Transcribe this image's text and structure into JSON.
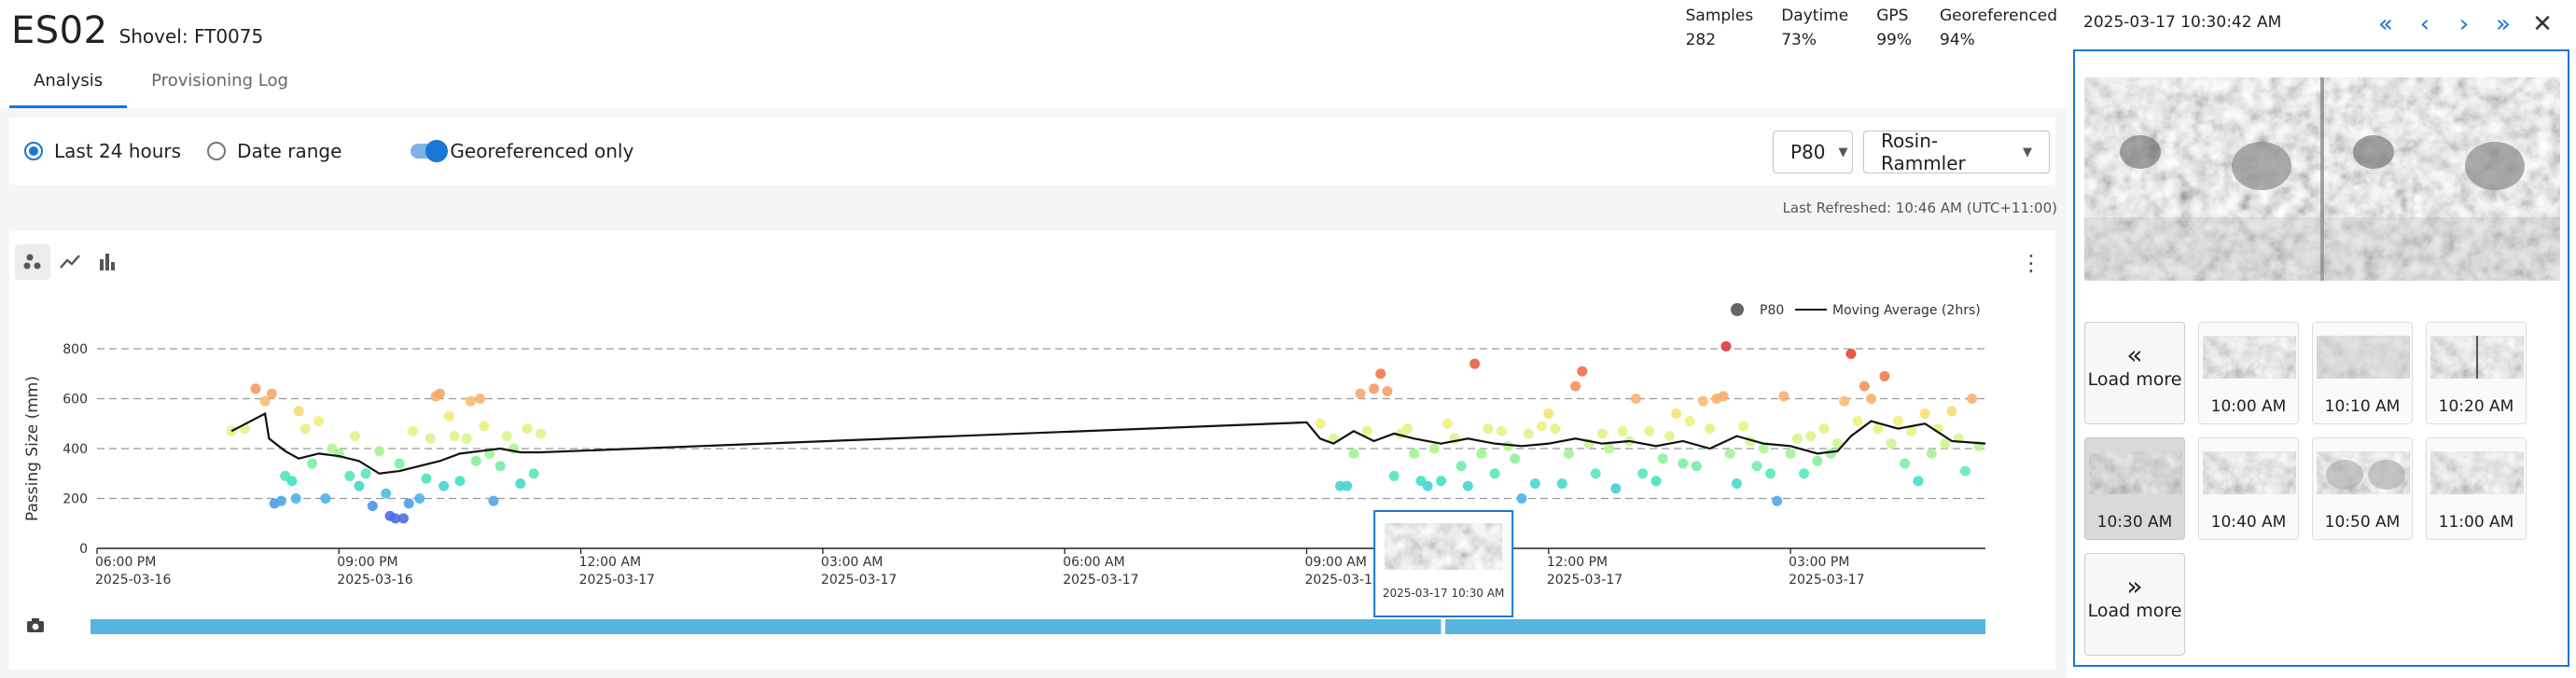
{
  "header": {
    "title": "ES02",
    "subtitle": "Shovel: FT0075",
    "stats": [
      {
        "label": "Samples",
        "value": "282"
      },
      {
        "label": "Daytime",
        "value": "73%"
      },
      {
        "label": "GPS",
        "value": "99%"
      },
      {
        "label": "Georeferenced",
        "value": "94%"
      }
    ],
    "tabs": [
      {
        "label": "Analysis",
        "active": true
      },
      {
        "label": "Provisioning Log",
        "active": false
      }
    ]
  },
  "filters": {
    "range_last24": "Last 24 hours",
    "range_date": "Date range",
    "geo_only": "Georeferenced only",
    "geo_only_on": true,
    "metric_select": "P80",
    "model_select": "Rosin-Rammler"
  },
  "last_refreshed": "Last Refreshed: 10:46 AM (UTC+11:00)",
  "chart_toolbar": {
    "icons": [
      "scatter-icon",
      "line-chart-icon",
      "bar-chart-icon"
    ],
    "menu_icon": "more-vert-icon"
  },
  "chart_data": {
    "type": "scatter",
    "ylabel": "Passing Size (mm)",
    "ylim": [
      0,
      800
    ],
    "yticks": [
      0,
      200,
      400,
      600,
      800
    ],
    "grid": "horizontal dashed",
    "legend": {
      "placement": "top-right",
      "points": "P80",
      "line": "Moving Average (2hrs)"
    },
    "x_start": "2025-03-16T18:00",
    "x_end": "2025-03-17T17:25",
    "x_ticks": [
      {
        "time": "2025-03-16T18:00",
        "label1": "06:00 PM",
        "label2": "2025-03-16"
      },
      {
        "time": "2025-03-16T21:00",
        "label1": "09:00 PM",
        "label2": "2025-03-16"
      },
      {
        "time": "2025-03-17T00:00",
        "label1": "12:00 AM",
        "label2": "2025-03-17"
      },
      {
        "time": "2025-03-17T03:00",
        "label1": "03:00 AM",
        "label2": "2025-03-17"
      },
      {
        "time": "2025-03-17T06:00",
        "label1": "06:00 AM",
        "label2": "2025-03-17"
      },
      {
        "time": "2025-03-17T09:00",
        "label1": "09:00 AM",
        "label2": "2025-03-17"
      },
      {
        "time": "2025-03-17T12:00",
        "label1": "12:00 PM",
        "label2": "2025-03-17"
      },
      {
        "time": "2025-03-17T15:00",
        "label1": "03:00 PM",
        "label2": "2025-03-17"
      }
    ],
    "points": [
      [
        "2025-03-16T19:40",
        470
      ],
      [
        "2025-03-16T19:50",
        480
      ],
      [
        "2025-03-16T19:58",
        640
      ],
      [
        "2025-03-16T20:05",
        590
      ],
      [
        "2025-03-16T20:10",
        620
      ],
      [
        "2025-03-16T20:12",
        180
      ],
      [
        "2025-03-16T20:17",
        190
      ],
      [
        "2025-03-16T20:20",
        290
      ],
      [
        "2025-03-16T20:25",
        270
      ],
      [
        "2025-03-16T20:28",
        200
      ],
      [
        "2025-03-16T20:30",
        550
      ],
      [
        "2025-03-16T20:35",
        480
      ],
      [
        "2025-03-16T20:40",
        340
      ],
      [
        "2025-03-16T20:45",
        510
      ],
      [
        "2025-03-16T20:50",
        200
      ],
      [
        "2025-03-16T20:55",
        400
      ],
      [
        "2025-03-16T21:00",
        380
      ],
      [
        "2025-03-16T21:08",
        290
      ],
      [
        "2025-03-16T21:12",
        450
      ],
      [
        "2025-03-16T21:15",
        250
      ],
      [
        "2025-03-16T21:20",
        300
      ],
      [
        "2025-03-16T21:25",
        170
      ],
      [
        "2025-03-16T21:30",
        390
      ],
      [
        "2025-03-16T21:35",
        220
      ],
      [
        "2025-03-16T21:38",
        130
      ],
      [
        "2025-03-16T21:42",
        120
      ],
      [
        "2025-03-16T21:45",
        340
      ],
      [
        "2025-03-16T21:48",
        120
      ],
      [
        "2025-03-16T21:52",
        180
      ],
      [
        "2025-03-16T21:55",
        470
      ],
      [
        "2025-03-16T22:00",
        200
      ],
      [
        "2025-03-16T22:05",
        280
      ],
      [
        "2025-03-16T22:08",
        440
      ],
      [
        "2025-03-16T22:12",
        610
      ],
      [
        "2025-03-16T22:15",
        620
      ],
      [
        "2025-03-16T22:18",
        250
      ],
      [
        "2025-03-16T22:22",
        530
      ],
      [
        "2025-03-16T22:26",
        450
      ],
      [
        "2025-03-16T22:30",
        270
      ],
      [
        "2025-03-16T22:35",
        440
      ],
      [
        "2025-03-16T22:38",
        590
      ],
      [
        "2025-03-16T22:42",
        350
      ],
      [
        "2025-03-16T22:45",
        600
      ],
      [
        "2025-03-16T22:48",
        490
      ],
      [
        "2025-03-16T22:52",
        380
      ],
      [
        "2025-03-16T22:55",
        190
      ],
      [
        "2025-03-16T23:00",
        330
      ],
      [
        "2025-03-16T23:05",
        450
      ],
      [
        "2025-03-16T23:10",
        400
      ],
      [
        "2025-03-16T23:15",
        260
      ],
      [
        "2025-03-16T23:20",
        480
      ],
      [
        "2025-03-16T23:25",
        300
      ],
      [
        "2025-03-16T23:30",
        460
      ],
      [
        "2025-03-17T09:10",
        500
      ],
      [
        "2025-03-17T09:20",
        440
      ],
      [
        "2025-03-17T09:25",
        250
      ],
      [
        "2025-03-17T09:30",
        250
      ],
      [
        "2025-03-17T09:35",
        380
      ],
      [
        "2025-03-17T09:40",
        620
      ],
      [
        "2025-03-17T09:45",
        470
      ],
      [
        "2025-03-17T09:50",
        640
      ],
      [
        "2025-03-17T09:55",
        700
      ],
      [
        "2025-03-17T10:00",
        630
      ],
      [
        "2025-03-17T10:05",
        290
      ],
      [
        "2025-03-17T10:10",
        460
      ],
      [
        "2025-03-17T10:15",
        480
      ],
      [
        "2025-03-17T10:20",
        380
      ],
      [
        "2025-03-17T10:25",
        270
      ],
      [
        "2025-03-17T10:30",
        250
      ],
      [
        "2025-03-17T10:35",
        400
      ],
      [
        "2025-03-17T10:40",
        270
      ],
      [
        "2025-03-17T10:45",
        500
      ],
      [
        "2025-03-17T10:50",
        440
      ],
      [
        "2025-03-17T10:55",
        330
      ],
      [
        "2025-03-17T11:00",
        250
      ],
      [
        "2025-03-17T11:05",
        740
      ],
      [
        "2025-03-17T11:10",
        380
      ],
      [
        "2025-03-17T11:15",
        480
      ],
      [
        "2025-03-17T11:20",
        300
      ],
      [
        "2025-03-17T11:25",
        470
      ],
      [
        "2025-03-17T11:30",
        410
      ],
      [
        "2025-03-17T11:35",
        360
      ],
      [
        "2025-03-17T11:40",
        200
      ],
      [
        "2025-03-17T11:45",
        460
      ],
      [
        "2025-03-17T11:50",
        260
      ],
      [
        "2025-03-17T11:55",
        490
      ],
      [
        "2025-03-17T12:00",
        540
      ],
      [
        "2025-03-17T12:05",
        480
      ],
      [
        "2025-03-17T12:10",
        260
      ],
      [
        "2025-03-17T12:15",
        380
      ],
      [
        "2025-03-17T12:20",
        650
      ],
      [
        "2025-03-17T12:25",
        710
      ],
      [
        "2025-03-17T12:30",
        420
      ],
      [
        "2025-03-17T12:35",
        300
      ],
      [
        "2025-03-17T12:40",
        460
      ],
      [
        "2025-03-17T12:45",
        400
      ],
      [
        "2025-03-17T12:50",
        240
      ],
      [
        "2025-03-17T12:55",
        470
      ],
      [
        "2025-03-17T13:00",
        430
      ],
      [
        "2025-03-17T13:05",
        600
      ],
      [
        "2025-03-17T13:10",
        300
      ],
      [
        "2025-03-17T13:15",
        470
      ],
      [
        "2025-03-17T13:20",
        270
      ],
      [
        "2025-03-17T13:25",
        360
      ],
      [
        "2025-03-17T13:30",
        450
      ],
      [
        "2025-03-17T13:35",
        540
      ],
      [
        "2025-03-17T13:40",
        340
      ],
      [
        "2025-03-17T13:45",
        510
      ],
      [
        "2025-03-17T13:50",
        330
      ],
      [
        "2025-03-17T13:55",
        590
      ],
      [
        "2025-03-17T14:00",
        480
      ],
      [
        "2025-03-17T14:05",
        600
      ],
      [
        "2025-03-17T14:10",
        610
      ],
      [
        "2025-03-17T14:12",
        810
      ],
      [
        "2025-03-17T14:15",
        380
      ],
      [
        "2025-03-17T14:20",
        260
      ],
      [
        "2025-03-17T14:25",
        490
      ],
      [
        "2025-03-17T14:30",
        430
      ],
      [
        "2025-03-17T14:35",
        330
      ],
      [
        "2025-03-17T14:40",
        400
      ],
      [
        "2025-03-17T14:45",
        300
      ],
      [
        "2025-03-17T14:50",
        190
      ],
      [
        "2025-03-17T14:55",
        610
      ],
      [
        "2025-03-17T15:00",
        380
      ],
      [
        "2025-03-17T15:05",
        440
      ],
      [
        "2025-03-17T15:10",
        300
      ],
      [
        "2025-03-17T15:15",
        450
      ],
      [
        "2025-03-17T15:20",
        350
      ],
      [
        "2025-03-17T15:25",
        480
      ],
      [
        "2025-03-17T15:30",
        380
      ],
      [
        "2025-03-17T15:35",
        420
      ],
      [
        "2025-03-17T15:40",
        590
      ],
      [
        "2025-03-17T15:45",
        780
      ],
      [
        "2025-03-17T15:50",
        510
      ],
      [
        "2025-03-17T15:55",
        650
      ],
      [
        "2025-03-17T16:00",
        600
      ],
      [
        "2025-03-17T16:05",
        480
      ],
      [
        "2025-03-17T16:10",
        690
      ],
      [
        "2025-03-17T16:15",
        420
      ],
      [
        "2025-03-17T16:20",
        510
      ],
      [
        "2025-03-17T16:25",
        340
      ],
      [
        "2025-03-17T16:30",
        470
      ],
      [
        "2025-03-17T16:35",
        270
      ],
      [
        "2025-03-17T16:40",
        540
      ],
      [
        "2025-03-17T16:45",
        380
      ],
      [
        "2025-03-17T16:50",
        480
      ],
      [
        "2025-03-17T16:55",
        420
      ],
      [
        "2025-03-17T17:00",
        550
      ],
      [
        "2025-03-17T17:05",
        440
      ],
      [
        "2025-03-17T17:10",
        310
      ],
      [
        "2025-03-17T17:15",
        600
      ],
      [
        "2025-03-17T17:20",
        410
      ]
    ],
    "moving_average": [
      [
        "2025-03-16T19:40",
        470
      ],
      [
        "2025-03-16T20:05",
        540
      ],
      [
        "2025-03-16T20:08",
        440
      ],
      [
        "2025-03-16T20:20",
        390
      ],
      [
        "2025-03-16T20:30",
        360
      ],
      [
        "2025-03-16T20:45",
        380
      ],
      [
        "2025-03-16T21:00",
        370
      ],
      [
        "2025-03-16T21:15",
        350
      ],
      [
        "2025-03-16T21:30",
        300
      ],
      [
        "2025-03-16T21:45",
        310
      ],
      [
        "2025-03-16T22:00",
        330
      ],
      [
        "2025-03-16T22:15",
        350
      ],
      [
        "2025-03-16T22:30",
        380
      ],
      [
        "2025-03-16T22:45",
        390
      ],
      [
        "2025-03-16T23:00",
        400
      ],
      [
        "2025-03-16T23:15",
        385
      ],
      [
        "2025-03-16T23:30",
        385
      ],
      [
        "2025-03-17T09:00",
        505
      ],
      [
        "2025-03-17T09:10",
        440
      ],
      [
        "2025-03-17T09:20",
        420
      ],
      [
        "2025-03-17T09:35",
        470
      ],
      [
        "2025-03-17T09:50",
        430
      ],
      [
        "2025-03-17T10:05",
        460
      ],
      [
        "2025-03-17T10:20",
        440
      ],
      [
        "2025-03-17T10:40",
        420
      ],
      [
        "2025-03-17T11:00",
        440
      ],
      [
        "2025-03-17T11:20",
        420
      ],
      [
        "2025-03-17T11:40",
        410
      ],
      [
        "2025-03-17T12:00",
        420
      ],
      [
        "2025-03-17T12:20",
        440
      ],
      [
        "2025-03-17T12:40",
        420
      ],
      [
        "2025-03-17T13:00",
        430
      ],
      [
        "2025-03-17T13:20",
        410
      ],
      [
        "2025-03-17T13:40",
        430
      ],
      [
        "2025-03-17T14:00",
        400
      ],
      [
        "2025-03-17T14:20",
        450
      ],
      [
        "2025-03-17T14:40",
        420
      ],
      [
        "2025-03-17T15:00",
        410
      ],
      [
        "2025-03-17T15:20",
        380
      ],
      [
        "2025-03-17T15:35",
        390
      ],
      [
        "2025-03-17T15:45",
        450
      ],
      [
        "2025-03-17T16:00",
        510
      ],
      [
        "2025-03-17T16:20",
        480
      ],
      [
        "2025-03-17T16:40",
        500
      ],
      [
        "2025-03-17T17:00",
        430
      ],
      [
        "2025-03-17T17:25",
        420
      ]
    ],
    "image_coverage": [
      [
        "2025-03-16T18:00",
        "2025-03-17T10:40"
      ],
      [
        "2025-03-17T10:48",
        "2025-03-17T17:25"
      ]
    ],
    "hover_preview": {
      "time": "2025-03-17T10:30",
      "label": "2025-03-17 10:30 AM"
    }
  },
  "panel": {
    "timestamp": "2025-03-17 10:30:42 AM",
    "nav_icons": [
      "first-page-icon",
      "prev-icon",
      "next-icon",
      "last-page-icon",
      "close-icon"
    ],
    "load_more_before": "Load more",
    "load_more_after": "Load more",
    "thumbnails": [
      {
        "label": "10:00 AM",
        "selected": false
      },
      {
        "label": "10:10 AM",
        "selected": false
      },
      {
        "label": "10:20 AM",
        "selected": false
      },
      {
        "label": "10:30 AM",
        "selected": true
      },
      {
        "label": "10:40 AM",
        "selected": false
      },
      {
        "label": "10:50 AM",
        "selected": false
      },
      {
        "label": "11:00 AM",
        "selected": false
      }
    ]
  },
  "colors": {
    "accent": "#1976d2",
    "coverage": "#56b4e0",
    "ma_line": "#111111"
  }
}
